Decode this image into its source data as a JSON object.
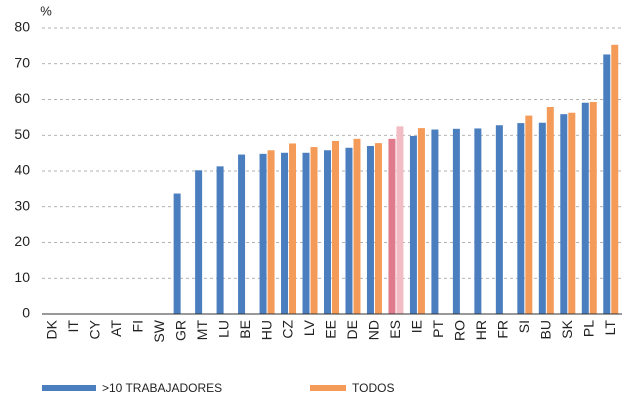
{
  "chart_data": {
    "type": "bar",
    "y_unit": "%",
    "categories": [
      "DK",
      "IT",
      "CY",
      "AT",
      "FI",
      "SW",
      "GR",
      "MT",
      "LU",
      "BE",
      "HU",
      "CZ",
      "LV",
      "EE",
      "DE",
      "ND",
      "ES",
      "IE",
      "PT",
      "RO",
      "HR",
      "FR",
      "SI",
      "BU",
      "SK",
      "PL",
      "LT"
    ],
    "series": [
      {
        "name": ">10 TRABAJADORES",
        "color": "#4a7ebf",
        "highlight_color": "#e07b8c",
        "values": [
          null,
          null,
          null,
          null,
          null,
          null,
          33.7,
          40.2,
          41.3,
          44.6,
          44.8,
          45.1,
          45.1,
          45.8,
          46.5,
          47.0,
          49.0,
          49.8,
          51.6,
          51.8,
          51.9,
          52.8,
          53.4,
          53.5,
          55.9,
          59.1,
          72.6
        ]
      },
      {
        "name": "TODOS",
        "color": "#f59b5a",
        "highlight_color": "#f2bcc4",
        "values": [
          null,
          null,
          null,
          null,
          null,
          null,
          null,
          null,
          null,
          null,
          45.8,
          47.7,
          46.7,
          48.4,
          49.0,
          47.8,
          52.5,
          52.0,
          null,
          null,
          null,
          null,
          55.5,
          57.9,
          56.3,
          59.3,
          75.3
        ]
      }
    ],
    "highlight_category": "ES",
    "ylim": [
      0,
      80
    ],
    "yticks": [
      0,
      10,
      20,
      30,
      40,
      50,
      60,
      70,
      80
    ],
    "grid": true
  }
}
